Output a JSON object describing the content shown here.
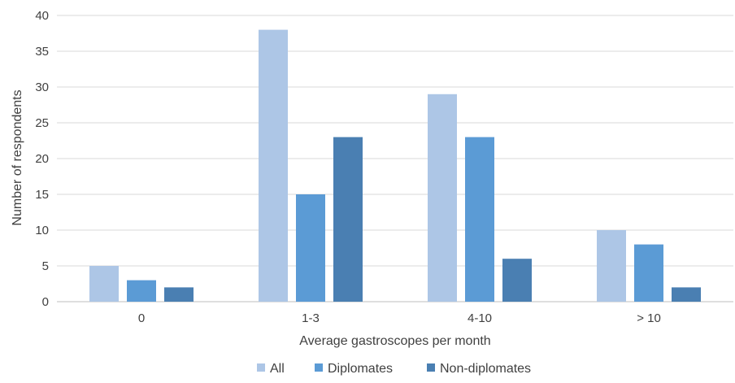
{
  "chart_data": {
    "type": "bar",
    "xlabel": "Average gastroscopes per month",
    "ylabel": "Number of respondents",
    "ylim": [
      0,
      40
    ],
    "yticks": [
      "0",
      "5",
      "10",
      "15",
      "20",
      "25",
      "30",
      "35",
      "40"
    ],
    "categories": [
      "0",
      "1-3",
      "4-10",
      "> 10"
    ],
    "series": [
      {
        "name": "All",
        "color": "#adc6e6",
        "values": [
          5,
          38,
          29,
          10
        ]
      },
      {
        "name": "Diplomates",
        "color": "#5b9bd5",
        "values": [
          3,
          15,
          23,
          8
        ]
      },
      {
        "name": "Non-diplomates",
        "color": "#4a7fb2",
        "values": [
          2,
          23,
          6,
          2
        ]
      }
    ],
    "grid": true,
    "legend_position": "bottom"
  }
}
